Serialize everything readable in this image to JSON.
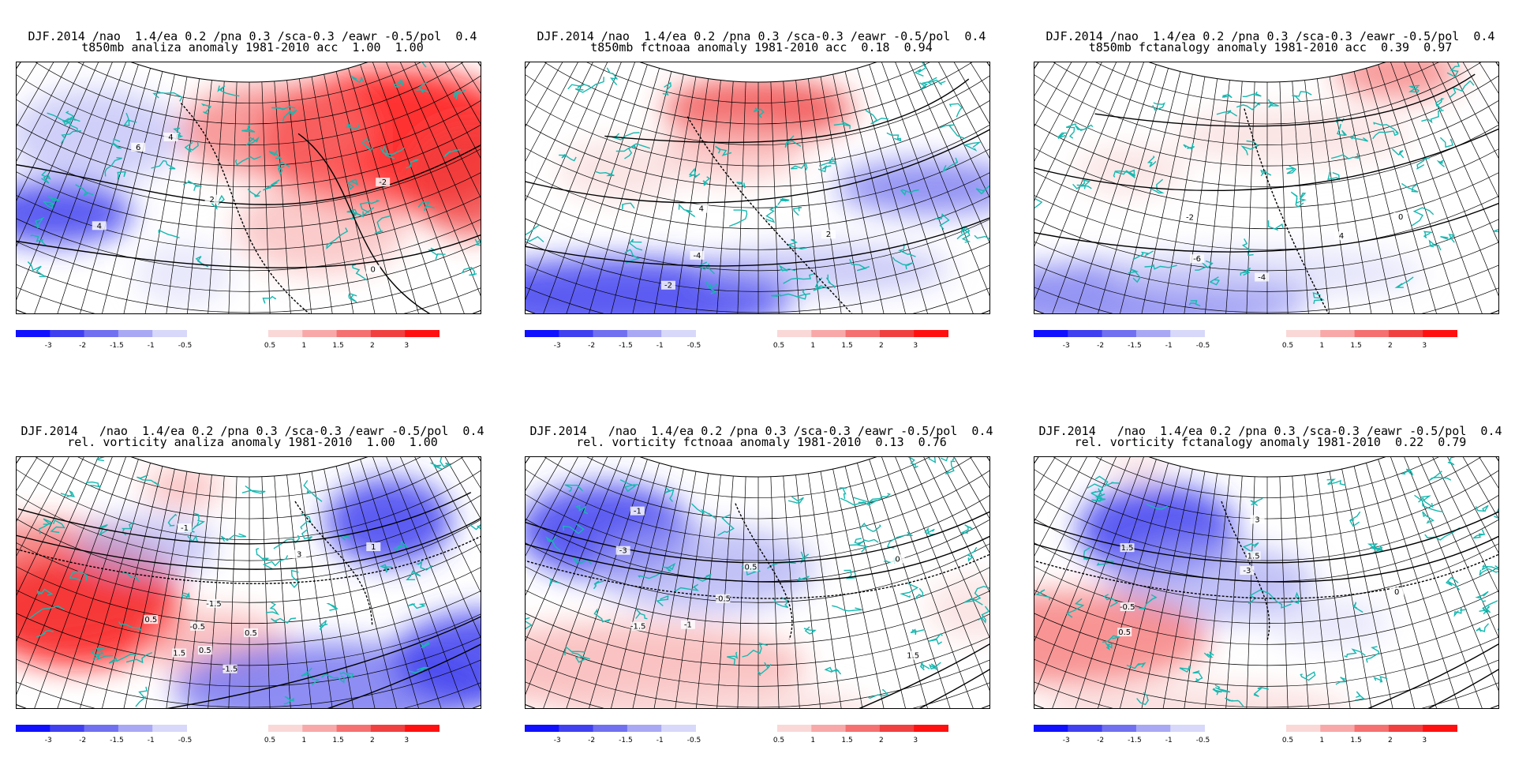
{
  "colors": {
    "strong_blue": "#1010ff",
    "blue2": "#4040f0",
    "blue3": "#7070f0",
    "blue4": "#a8a8f4",
    "blue5": "#d8d8fa",
    "pink1": "#fad8d8",
    "pink2": "#f8a8a8",
    "red3": "#f57070",
    "red4": "#f04040",
    "strong_red": "#ff1010",
    "coast": "#16b8b0"
  },
  "colorbar": {
    "neg_labels": [
      "-3",
      "-2",
      "-1.5",
      "-1",
      "-0.5"
    ],
    "pos_labels": [
      "0.5",
      "1",
      "1.5",
      "2",
      "3"
    ]
  },
  "panels": [
    {
      "title1": "DJF.2014 /nao  1.4/ea 0.2 /pna 0.3 /sca-0.3 /eawr -0.5/pol  0.4",
      "title2": "t850mb analiza anomaly 1981-2010 acc  1.00  1.00",
      "contour_labels": [
        "4",
        "-2",
        "2",
        "0",
        "4",
        "6"
      ]
    },
    {
      "title1": "DJF.2014 /nao  1.4/ea 0.2 /pna 0.3 /sca-0.3 /eawr -0.5/pol  0.4",
      "title2": "t850mb fctnoaa anomaly 1981-2010 acc  0.18  0.94",
      "contour_labels": [
        "-2",
        "2",
        "4",
        "-4"
      ]
    },
    {
      "title1": "DJF.2014 /nao  1.4/ea 0.2 /pna 0.3 /sca-0.3 /eawr -0.5/pol  0.4",
      "title2": "t850mb fctanalogy anomaly 1981-2010 acc  0.39  0.97",
      "contour_labels": [
        "-6",
        "-4",
        "-2",
        "0",
        "4"
      ]
    },
    {
      "title1": "DJF.2014   /nao  1.4/ea 0.2 /pna 0.3 /sca-0.3 /eawr -0.5/pol  0.4",
      "title2": "rel. vorticity analiza anomaly 1981-2010  1.00  1.00",
      "contour_labels": [
        "-0.5",
        "-1",
        "0.5",
        "-1.5",
        "0.5",
        "1",
        "1.5",
        "0.5",
        "3",
        "-1.5"
      ]
    },
    {
      "title1": "DJF.2014   /nao  1.4/ea 0.2 /pna 0.3 /sca-0.3 /eawr -0.5/pol  0.4",
      "title2": "rel. vorticity fctnoaa anomaly 1981-2010  0.13  0.76",
      "contour_labels": [
        "-0.5",
        "-3",
        "-1.5",
        "0",
        "-1",
        "0.5",
        "1.5",
        "-1"
      ]
    },
    {
      "title1": "DJF.2014   /nao  1.4/ea 0.2 /pna 0.3 /sca-0.3 /eawr -0.5/pol  0.4",
      "title2": "rel. vorticity fctanalogy anomaly 1981-2010  0.22  0.79",
      "contour_labels": [
        "-3",
        "0",
        "0.5",
        "1.5",
        "-0.5",
        "1.5",
        "3"
      ]
    }
  ]
}
